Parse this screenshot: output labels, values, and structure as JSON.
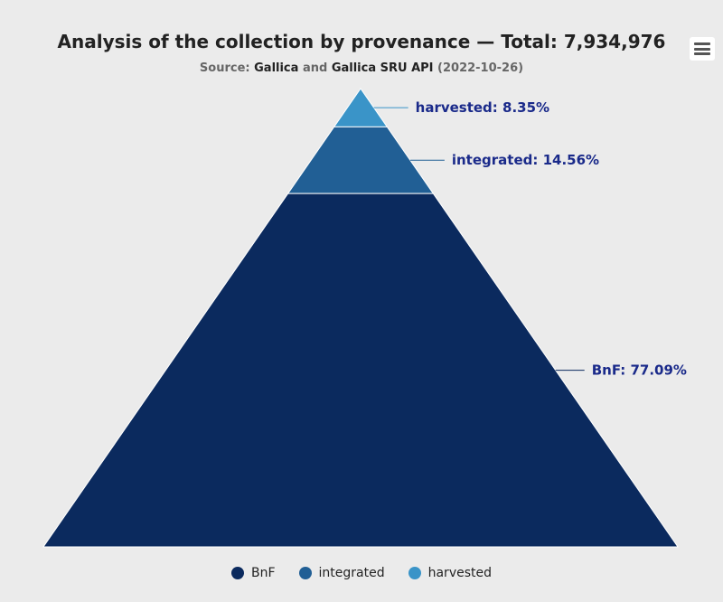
{
  "chart_data": {
    "type": "pyramid",
    "title": "Analysis of the collection by provenance — Total: 7,934,976",
    "subtitle": {
      "prefix": "Source: ",
      "link1": "Gallica",
      "middle": " and ",
      "link2": "Gallica SRU API",
      "suffix": " (2022-10-26)"
    },
    "slices": [
      {
        "name": "harvested",
        "value": 8.35,
        "label": "harvested: 8.35%",
        "color": "#3a94c8"
      },
      {
        "name": "integrated",
        "value": 14.56,
        "label": "integrated: 14.56%",
        "color": "#215f95"
      },
      {
        "name": "BnF",
        "value": 77.09,
        "label": "BnF: 77.09%",
        "color": "#0b2a5e"
      }
    ],
    "label_color": "#1a2a8a",
    "legend": [
      {
        "label": "BnF",
        "color": "#0b2a5e"
      },
      {
        "label": "integrated",
        "color": "#215f95"
      },
      {
        "label": "harvested",
        "color": "#3a94c8"
      }
    ],
    "legend_position": "bottom"
  },
  "menu": {
    "icon": "hamburger-menu-icon"
  }
}
